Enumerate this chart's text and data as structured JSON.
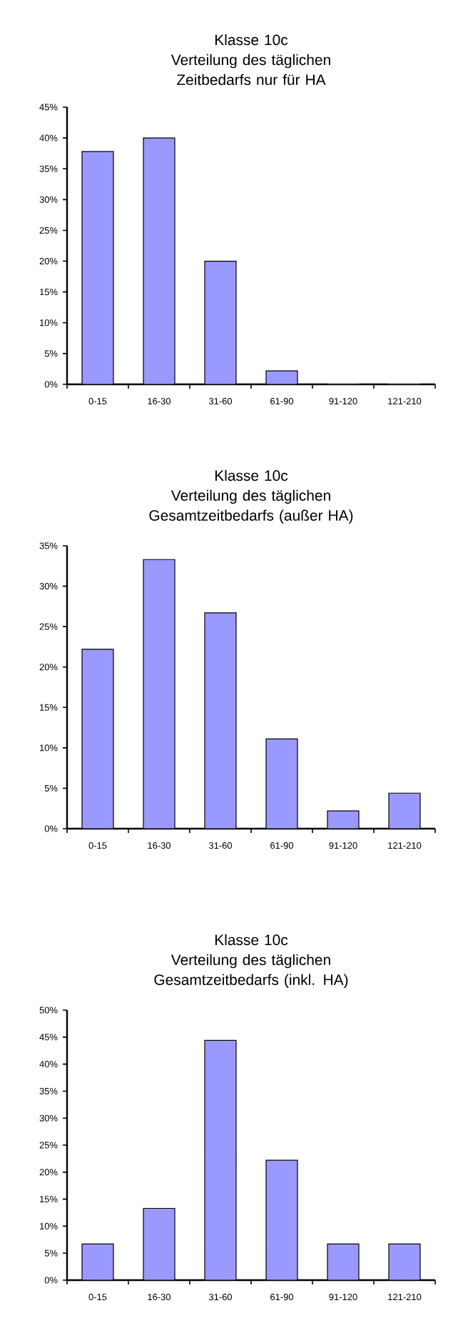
{
  "chart_data": [
    {
      "type": "bar",
      "title": "Klasse 10c",
      "subtitle": "Verteilung des täglichen Zeitbedarfs nur für  HA",
      "categories": [
        "0-15",
        "16-30",
        "31-60",
        "61-90",
        "91-120",
        "121-210"
      ],
      "values": [
        37.8,
        40,
        20,
        2.2,
        0,
        0
      ],
      "color": "#9999ff",
      "ylim": [
        0,
        45
      ],
      "yticks": [
        {
          "value": 0,
          "label": "0%"
        },
        {
          "value": 5,
          "label": "5%"
        },
        {
          "value": 10,
          "label": "10%"
        },
        {
          "value": 15,
          "label": "15%"
        },
        {
          "value": 20,
          "label": "20%"
        },
        {
          "value": 25,
          "label": "25%"
        },
        {
          "value": 30,
          "label": "30%"
        },
        {
          "value": 35,
          "label": "35%"
        },
        {
          "value": 40,
          "label": "40%"
        },
        {
          "value": 45,
          "label": "45%"
        }
      ]
    },
    {
      "type": "bar",
      "title": "Klasse 10c",
      "subtitle": "Verteilung des täglichen Gesamtzeitbedarfs (außer HA)",
      "categories": [
        "0-15",
        "16-30",
        "31-60",
        "61-90",
        "91-120",
        "121-210"
      ],
      "values": [
        22.2,
        33.3,
        26.7,
        11.1,
        2.2,
        4.4
      ],
      "color": "#9999ff",
      "ylim": [
        0,
        35
      ],
      "yticks": [
        {
          "value": 0,
          "label": "0%"
        },
        {
          "value": 5,
          "label": "5%"
        },
        {
          "value": 10,
          "label": "10%"
        },
        {
          "value": 15,
          "label": "15%"
        },
        {
          "value": 20,
          "label": "20%"
        },
        {
          "value": 25,
          "label": "25%"
        },
        {
          "value": 30,
          "label": "30%"
        },
        {
          "value": 35,
          "label": "35%"
        }
      ]
    },
    {
      "type": "bar",
      "title": "Klasse 10c",
      "subtitle": "Verteilung des täglichen Gesamtzeitbedarfs (inkl. HA)",
      "categories": [
        "0-15",
        "16-30",
        "31-60",
        "61-90",
        "91-120",
        "121-210"
      ],
      "values": [
        6.7,
        13.3,
        44.4,
        22.2,
        6.7,
        6.7
      ],
      "color": "#9999ff",
      "ylim": [
        0,
        50
      ],
      "yticks": [
        {
          "value": 0,
          "label": "0%"
        },
        {
          "value": 5,
          "label": "5%"
        },
        {
          "value": 10,
          "label": "10%"
        },
        {
          "value": 15,
          "label": "15%"
        },
        {
          "value": 20,
          "label": "20%"
        },
        {
          "value": 25,
          "label": "25%"
        },
        {
          "value": 30,
          "label": "30%"
        },
        {
          "value": 35,
          "label": "35%"
        },
        {
          "value": 40,
          "label": "40%"
        },
        {
          "value": 45,
          "label": "45%"
        },
        {
          "value": 50,
          "label": "50%"
        }
      ]
    }
  ]
}
